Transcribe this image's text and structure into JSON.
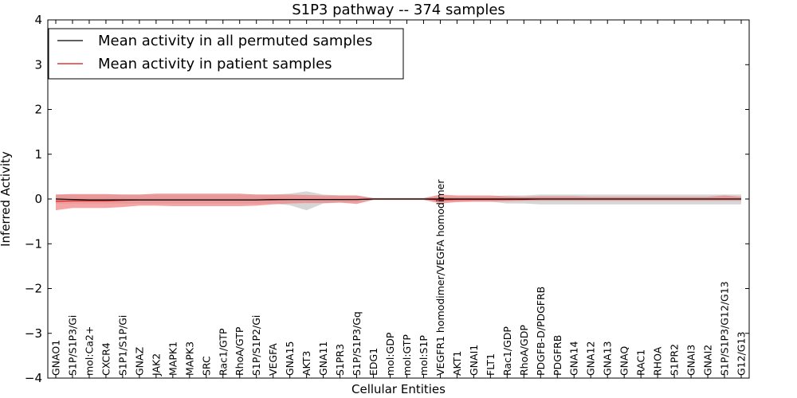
{
  "chart_data": {
    "type": "line",
    "title": "S1P3 pathway -- 374 samples",
    "xlabel": "Cellular Entities",
    "ylabel": "Inferred Activity",
    "ylim": [
      -4,
      4
    ],
    "yticks": [
      "−4",
      "−3",
      "−2",
      "−1",
      "0",
      "1",
      "2",
      "3",
      "4"
    ],
    "ytick_values": [
      -4,
      -3,
      -2,
      -1,
      0,
      1,
      2,
      3,
      4
    ],
    "legend_position": "top-left",
    "categories": [
      "GNAO1",
      "S1P/S1P3/Gi",
      "mol:Ca2+",
      "CXCR4",
      "S1P1/S1P/Gi",
      "GNAZ",
      "JAK2",
      "MAPK1",
      "MAPK3",
      "SRC",
      "Rac1/GTP",
      "RhoA/GTP",
      "S1P/S1P2/Gi",
      "VEGFA",
      "GNA15",
      "AKT3",
      "GNA11",
      "S1PR3",
      "S1P/S1P3/Gq",
      "EDG1",
      "mol:GDP",
      "mol:GTP",
      "mol:S1P",
      "VEGFR1 homodimer/VEGFA homodimer",
      "AKT1",
      "GNAI1",
      "FLT1",
      "Rac1/GDP",
      "RhoA/GDP",
      "PDGFB-D/PDGFRB",
      "PDGFRB",
      "GNA14",
      "GNA12",
      "GNA13",
      "GNAQ",
      "RAC1",
      "RHOA",
      "S1PR2",
      "GNAI3",
      "GNAI2",
      "S1P/S1P3/G12/G13",
      "G12/G13"
    ],
    "series": [
      {
        "name": "Mean activity in all permuted samples",
        "color": "#000000",
        "band_color": "#c8c8c8",
        "values": [
          0,
          -0.01,
          -0.02,
          -0.02,
          -0.02,
          -0.02,
          -0.02,
          -0.02,
          -0.02,
          -0.02,
          -0.02,
          -0.02,
          -0.02,
          -0.01,
          -0.01,
          -0.01,
          -0.01,
          -0.01,
          -0.01,
          0,
          0,
          0,
          0,
          0,
          0,
          0,
          0,
          0,
          0,
          0,
          0,
          0,
          0,
          0,
          0,
          0,
          0,
          0,
          0,
          0,
          0,
          0
        ],
        "band_upper": [
          0.1,
          0.1,
          0.1,
          0.1,
          0.1,
          0.1,
          0.1,
          0.1,
          0.1,
          0.1,
          0.1,
          0.1,
          0.1,
          0.1,
          0.12,
          0.17,
          0.1,
          0.08,
          0.08,
          0.02,
          0.02,
          0.02,
          0.02,
          0.06,
          0.06,
          0.06,
          0.06,
          0.08,
          0.08,
          0.1,
          0.1,
          0.1,
          0.1,
          0.1,
          0.1,
          0.1,
          0.1,
          0.1,
          0.1,
          0.1,
          0.1,
          0.1
        ],
        "band_lower": [
          -0.1,
          -0.1,
          -0.1,
          -0.1,
          -0.1,
          -0.1,
          -0.1,
          -0.1,
          -0.1,
          -0.1,
          -0.1,
          -0.1,
          -0.1,
          -0.1,
          -0.14,
          -0.25,
          -0.1,
          -0.08,
          -0.08,
          -0.02,
          -0.02,
          -0.02,
          -0.02,
          -0.06,
          -0.06,
          -0.06,
          -0.06,
          -0.1,
          -0.1,
          -0.12,
          -0.12,
          -0.12,
          -0.12,
          -0.12,
          -0.12,
          -0.12,
          -0.12,
          -0.12,
          -0.12,
          -0.12,
          -0.12,
          -0.12
        ]
      },
      {
        "name": "Mean activity in patient samples",
        "color": "#dd1111",
        "band_color": "#f08080",
        "values": [
          -0.05,
          -0.04,
          -0.04,
          -0.04,
          -0.03,
          -0.02,
          -0.02,
          -0.02,
          -0.02,
          -0.02,
          -0.02,
          -0.02,
          -0.02,
          -0.02,
          -0.01,
          -0.01,
          -0.01,
          -0.01,
          -0.01,
          0,
          0,
          0,
          0,
          -0.02,
          -0.01,
          -0.01,
          -0.01,
          -0.01,
          -0.01,
          0,
          0,
          0,
          0,
          0,
          0,
          0,
          0,
          0,
          0,
          0,
          0,
          0
        ],
        "band_upper": [
          0.1,
          0.11,
          0.11,
          0.11,
          0.1,
          0.1,
          0.12,
          0.12,
          0.12,
          0.12,
          0.12,
          0.12,
          0.1,
          0.1,
          0.1,
          0.09,
          0.08,
          0.08,
          0.08,
          0.02,
          0.02,
          0.02,
          0.02,
          0.1,
          0.08,
          0.08,
          0.08,
          0.06,
          0.05,
          0.06,
          0.06,
          0.06,
          0.05,
          0.05,
          0.05,
          0.05,
          0.05,
          0.05,
          0.05,
          0.05,
          0.08,
          0.05
        ],
        "band_lower": [
          -0.25,
          -0.2,
          -0.2,
          -0.2,
          -0.18,
          -0.15,
          -0.15,
          -0.16,
          -0.16,
          -0.16,
          -0.16,
          -0.16,
          -0.15,
          -0.12,
          -0.1,
          -0.09,
          -0.09,
          -0.08,
          -0.11,
          -0.02,
          -0.02,
          -0.02,
          -0.02,
          -0.1,
          -0.07,
          -0.06,
          -0.06,
          -0.05,
          -0.04,
          -0.04,
          -0.04,
          -0.04,
          -0.04,
          -0.04,
          -0.04,
          -0.04,
          -0.04,
          -0.04,
          -0.04,
          -0.04,
          -0.04,
          -0.04
        ]
      }
    ]
  }
}
